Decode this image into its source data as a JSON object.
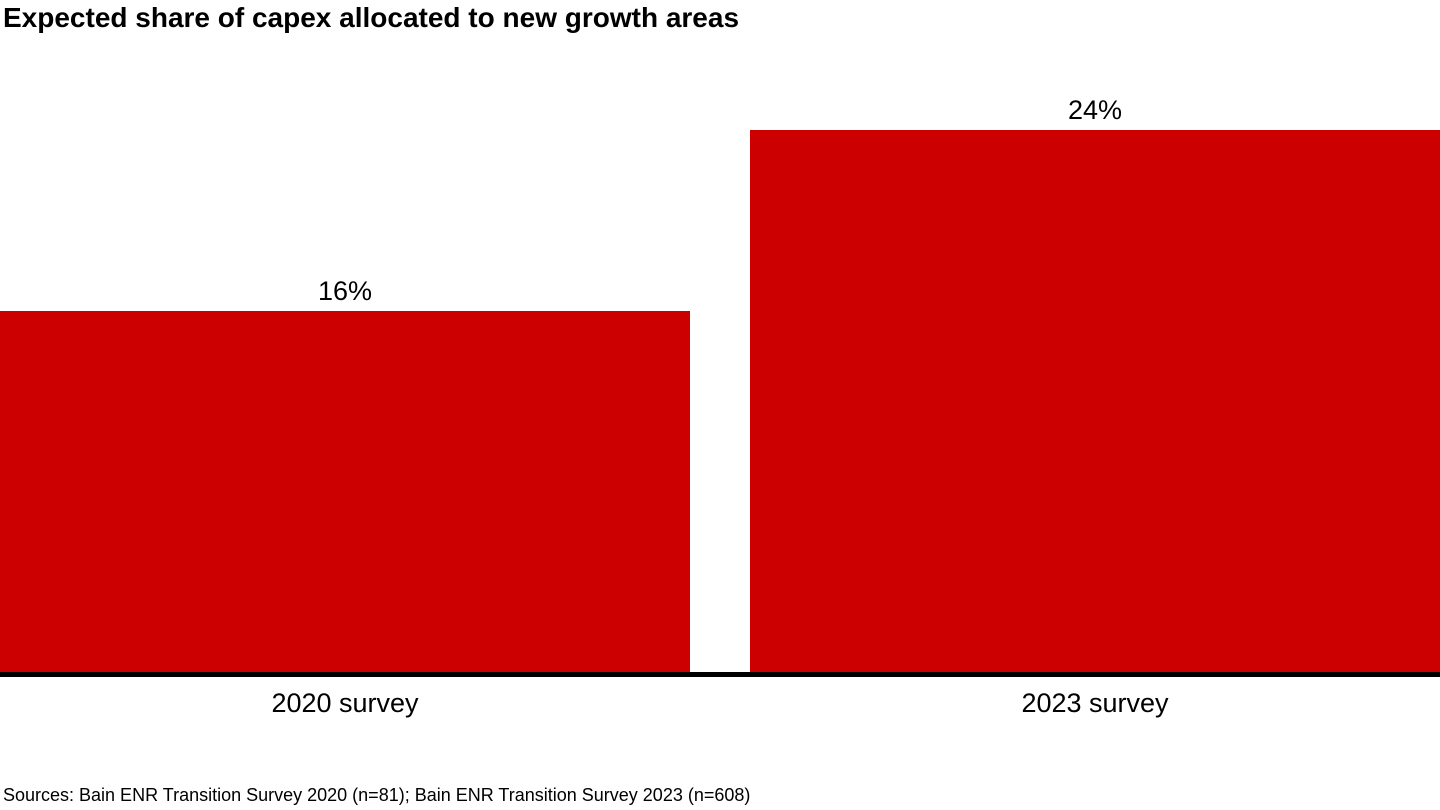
{
  "chart_data": {
    "type": "bar",
    "title": "Expected share of capex allocated to new growth areas",
    "categories": [
      "2020 survey",
      "2023 survey"
    ],
    "values": [
      16,
      24
    ],
    "value_labels": [
      "16%",
      "24%"
    ],
    "xlabel": "",
    "ylabel": "",
    "ylim": [
      0,
      24
    ],
    "grid": false,
    "legend": false,
    "bar_color": "#cc0000",
    "axis_color": "#000000",
    "value_label_position": "above-bar",
    "layout_hint": "two full-bleed horizontal-spanning bars, baseline axis only, no y-axis ticks"
  },
  "footer": {
    "sources": "Sources: Bain ENR Transition Survey 2020 (n=81); Bain ENR Transition Survey 2023 (n=608)"
  }
}
